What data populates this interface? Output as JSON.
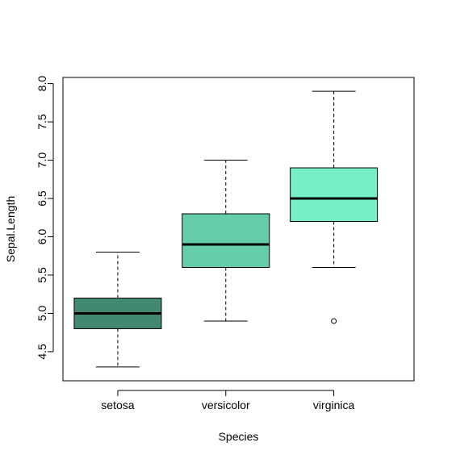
{
  "chart_data": {
    "type": "boxplot",
    "title": "",
    "xlabel": "Species",
    "ylabel": "Sepal.Length",
    "categories": [
      "setosa",
      "versicolor",
      "virginica"
    ],
    "series": [
      {
        "name": "setosa",
        "min": 4.3,
        "q1": 4.8,
        "median": 5.0,
        "q3": 5.2,
        "max": 5.8,
        "outliers": [],
        "color": "#43896F"
      },
      {
        "name": "versicolor",
        "min": 4.9,
        "q1": 5.6,
        "median": 5.9,
        "q3": 6.3,
        "max": 7.0,
        "outliers": [],
        "color": "#66CDAA"
      },
      {
        "name": "virginica",
        "min": 5.6,
        "q1": 6.2,
        "median": 6.5,
        "q3": 6.9,
        "max": 7.9,
        "outliers": [
          4.9
        ],
        "color": "#76EEC6"
      }
    ],
    "yticks": [
      "4.5",
      "5.0",
      "5.5",
      "6.0",
      "6.5",
      "7.0",
      "7.5",
      "8.0"
    ],
    "ylim": [
      4.12,
      8.08
    ],
    "grid": false,
    "legend": "none"
  }
}
